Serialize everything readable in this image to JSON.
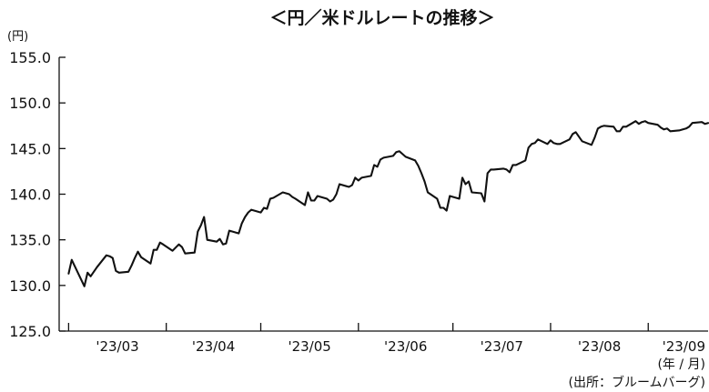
{
  "chart_data": {
    "type": "line",
    "title": "＜円／米ドルレートの推移＞",
    "y_unit": "(円)",
    "x_unit": "(年 / 月)",
    "source": "(出所：ブルームバーグ)",
    "ylim": [
      125.0,
      155.0
    ],
    "y_ticks": [
      "155.0",
      "150.0",
      "145.0",
      "140.0",
      "135.0",
      "130.0",
      "125.0"
    ],
    "x_tick_labels": [
      "'23/03",
      "'23/04",
      "'23/05",
      "'23/06",
      "'23/07",
      "'23/08",
      "'23/09"
    ],
    "grid": false,
    "legend": "none",
    "series": [
      {
        "x": [
          "2023-03-01",
          "2023-03-02",
          "2023-03-06",
          "2023-03-07",
          "2023-03-08",
          "2023-03-10",
          "2023-03-13",
          "2023-03-14",
          "2023-03-15",
          "2023-03-16",
          "2023-03-17",
          "2023-03-20",
          "2023-03-21",
          "2023-03-22",
          "2023-03-23",
          "2023-03-24",
          "2023-03-27",
          "2023-03-28",
          "2023-03-29",
          "2023-03-30",
          "2023-03-31",
          "2023-04-03",
          "2023-04-05",
          "2023-04-06",
          "2023-04-07",
          "2023-04-10",
          "2023-04-11",
          "2023-04-12",
          "2023-04-13",
          "2023-04-14",
          "2023-04-17",
          "2023-04-18",
          "2023-04-19",
          "2023-04-20",
          "2023-04-21",
          "2023-04-24",
          "2023-04-25",
          "2023-04-26",
          "2023-04-27",
          "2023-04-28",
          "2023-05-01",
          "2023-05-02",
          "2023-05-03",
          "2023-05-04",
          "2023-05-05",
          "2023-05-08",
          "2023-05-09",
          "2023-05-10",
          "2023-05-11",
          "2023-05-12",
          "2023-05-15",
          "2023-05-16",
          "2023-05-17",
          "2023-05-18",
          "2023-05-19",
          "2023-05-22",
          "2023-05-23",
          "2023-05-24",
          "2023-05-25",
          "2023-05-26",
          "2023-05-29",
          "2023-05-30",
          "2023-05-31",
          "2023-06-01",
          "2023-06-02",
          "2023-06-05",
          "2023-06-06",
          "2023-06-07",
          "2023-06-08",
          "2023-06-09",
          "2023-06-12",
          "2023-06-13",
          "2023-06-14",
          "2023-06-15",
          "2023-06-16",
          "2023-06-19",
          "2023-06-20",
          "2023-06-21",
          "2023-06-22",
          "2023-06-23",
          "2023-06-26",
          "2023-06-27",
          "2023-06-28",
          "2023-06-29",
          "2023-06-30",
          "2023-07-03",
          "2023-07-04",
          "2023-07-05",
          "2023-07-06",
          "2023-07-07",
          "2023-07-10",
          "2023-07-11",
          "2023-07-12",
          "2023-07-13",
          "2023-07-14",
          "2023-07-17",
          "2023-07-18",
          "2023-07-19",
          "2023-07-20",
          "2023-07-21",
          "2023-07-24",
          "2023-07-25",
          "2023-07-26",
          "2023-07-27",
          "2023-07-28",
          "2023-07-31",
          "2023-08-01",
          "2023-08-02",
          "2023-08-03",
          "2023-08-04",
          "2023-08-07",
          "2023-08-08",
          "2023-08-09",
          "2023-08-10",
          "2023-08-11",
          "2023-08-14",
          "2023-08-15",
          "2023-08-16",
          "2023-08-17",
          "2023-08-18",
          "2023-08-21",
          "2023-08-22",
          "2023-08-23",
          "2023-08-24",
          "2023-08-25",
          "2023-08-28",
          "2023-08-29",
          "2023-08-30",
          "2023-08-31",
          "2023-09-01",
          "2023-09-04",
          "2023-09-05",
          "2023-09-06",
          "2023-09-07",
          "2023-09-08",
          "2023-09-11",
          "2023-09-12",
          "2023-09-13",
          "2023-09-14",
          "2023-09-15",
          "2023-09-18",
          "2023-09-19",
          "2023-09-20"
        ],
        "y": [
          131.3,
          132.8,
          129.9,
          131.4,
          131.0,
          132.0,
          133.3,
          133.2,
          133.0,
          131.6,
          131.4,
          131.5,
          132.2,
          133.0,
          133.7,
          133.1,
          132.4,
          133.9,
          133.9,
          134.7,
          134.5,
          133.8,
          134.5,
          134.2,
          133.5,
          133.6,
          135.9,
          136.6,
          137.5,
          135.0,
          134.8,
          135.1,
          134.5,
          134.6,
          136.0,
          135.7,
          136.8,
          137.5,
          138.0,
          138.3,
          138.0,
          138.5,
          138.4,
          139.5,
          139.6,
          140.2,
          140.1,
          140.0,
          139.7,
          139.5,
          138.8,
          140.2,
          139.3,
          139.3,
          139.8,
          139.5,
          139.2,
          139.4,
          140.0,
          141.1,
          140.8,
          141.0,
          141.8,
          141.5,
          141.8,
          142.0,
          143.2,
          143.0,
          143.8,
          144.0,
          144.2,
          144.6,
          144.7,
          144.4,
          144.1,
          143.7,
          143.1,
          142.3,
          141.4,
          140.2,
          139.5,
          138.5,
          138.5,
          138.2,
          139.8,
          139.5,
          141.8,
          141.1,
          141.4,
          140.2,
          140.1,
          139.2,
          142.3,
          142.7,
          142.7,
          142.8,
          142.7,
          142.4,
          143.2,
          143.2,
          143.7,
          145.1,
          145.5,
          145.6,
          146.0,
          145.5,
          145.9,
          145.6,
          145.5,
          145.5,
          146.0,
          146.6,
          146.8,
          146.3,
          145.8,
          145.4,
          146.2,
          147.2,
          147.4,
          147.5,
          147.4,
          146.9,
          146.9,
          147.4,
          147.4,
          148.0,
          147.7,
          147.9,
          148.0,
          147.8,
          147.6,
          147.3,
          147.1,
          147.2,
          146.9,
          147.0,
          147.1,
          147.2,
          147.4,
          147.8,
          147.9,
          147.7,
          147.8
        ]
      }
    ]
  }
}
